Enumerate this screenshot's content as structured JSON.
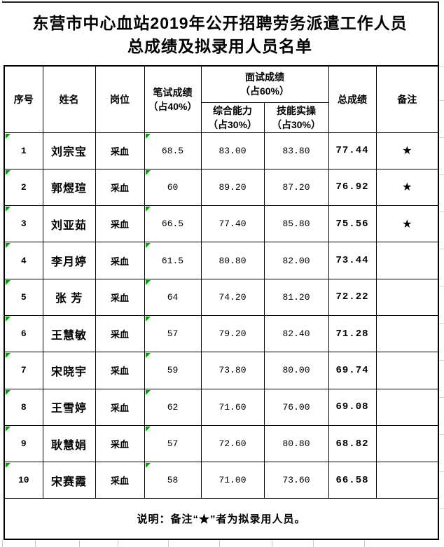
{
  "title": "东营市中心血站2019年公开招聘劳务派遣工作人员\n总成绩及拟录用人员名单",
  "table": {
    "headers": {
      "no": "序号",
      "name": "姓名",
      "position": "岗位",
      "written": "笔试成绩\n（占40%）",
      "interview": "面试成绩\n（占60%）",
      "comprehensive": "综合能力\n（占30%）",
      "practical": "技能实操\n（占30%）",
      "total": "总成绩",
      "remark": "备注"
    },
    "rows": [
      {
        "no": "1",
        "name": "刘宗宝",
        "position": "采血",
        "written": "68.5",
        "comprehensive": "83.00",
        "practical": "83.80",
        "total": "77.44",
        "remark": "★"
      },
      {
        "no": "2",
        "name": "郭煜瑄",
        "position": "采血",
        "written": "60",
        "comprehensive": "89.20",
        "practical": "87.20",
        "total": "76.92",
        "remark": "★"
      },
      {
        "no": "3",
        "name": "刘亚茹",
        "position": "采血",
        "written": "66.5",
        "comprehensive": "77.40",
        "practical": "85.80",
        "total": "75.56",
        "remark": "★"
      },
      {
        "no": "4",
        "name": "李月婷",
        "position": "采血",
        "written": "61.5",
        "comprehensive": "80.80",
        "practical": "82.00",
        "total": "73.44",
        "remark": ""
      },
      {
        "no": "5",
        "name": "张 芳",
        "position": "采血",
        "written": "64",
        "comprehensive": "74.20",
        "practical": "81.20",
        "total": "72.22",
        "remark": ""
      },
      {
        "no": "6",
        "name": "王慧敏",
        "position": "采血",
        "written": "57",
        "comprehensive": "79.20",
        "practical": "82.40",
        "total": "71.28",
        "remark": ""
      },
      {
        "no": "7",
        "name": "宋晓宇",
        "position": "采血",
        "written": "59",
        "comprehensive": "73.80",
        "practical": "80.00",
        "total": "69.74",
        "remark": ""
      },
      {
        "no": "8",
        "name": "王雪婷",
        "position": "采血",
        "written": "62",
        "comprehensive": "71.60",
        "practical": "76.00",
        "total": "69.08",
        "remark": ""
      },
      {
        "no": "9",
        "name": "耿慧娟",
        "position": "采血",
        "written": "57",
        "comprehensive": "72.60",
        "practical": "80.80",
        "total": "68.82",
        "remark": ""
      },
      {
        "no": "10",
        "name": "宋赛霞",
        "position": "采血",
        "written": "58",
        "comprehensive": "71.00",
        "practical": "73.60",
        "total": "66.58",
        "remark": ""
      }
    ]
  },
  "footer": {
    "note": "说明：备注“★”者为拟录用人员。"
  },
  "icons": {
    "star": "★",
    "error_flag": "green-triangle"
  },
  "colors": {
    "flag_green": "#00A000",
    "border_black": "#000000",
    "gridline_gray": "#c9c9c9"
  }
}
